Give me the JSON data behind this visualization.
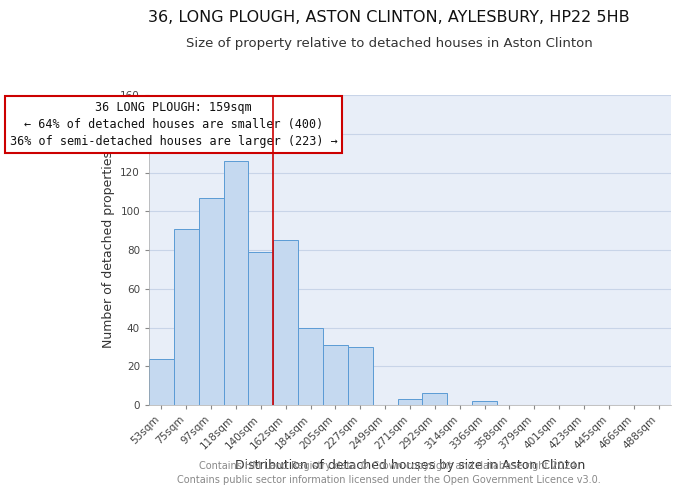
{
  "title": "36, LONG PLOUGH, ASTON CLINTON, AYLESBURY, HP22 5HB",
  "subtitle": "Size of property relative to detached houses in Aston Clinton",
  "xlabel": "Distribution of detached houses by size in Aston Clinton",
  "ylabel": "Number of detached properties",
  "footer_line1": "Contains HM Land Registry data © Crown copyright and database right 2024.",
  "footer_line2": "Contains public sector information licensed under the Open Government Licence v3.0.",
  "bar_labels": [
    "53sqm",
    "75sqm",
    "97sqm",
    "118sqm",
    "140sqm",
    "162sqm",
    "184sqm",
    "205sqm",
    "227sqm",
    "249sqm",
    "271sqm",
    "292sqm",
    "314sqm",
    "336sqm",
    "358sqm",
    "379sqm",
    "401sqm",
    "423sqm",
    "445sqm",
    "466sqm",
    "488sqm"
  ],
  "bar_values": [
    24,
    91,
    107,
    126,
    79,
    85,
    40,
    31,
    30,
    0,
    3,
    6,
    0,
    2,
    0,
    0,
    0,
    0,
    0,
    0,
    0
  ],
  "bar_color": "#c5d9f0",
  "bar_edge_color": "#5b9bd5",
  "grid_color": "#c8d4e8",
  "background_color": "#e8eef8",
  "annotation_box_text_line1": "36 LONG PLOUGH: 159sqm",
  "annotation_box_text_line2": "← 64% of detached houses are smaller (400)",
  "annotation_box_text_line3": "36% of semi-detached houses are larger (223) →",
  "annotation_box_edge_color": "#cc0000",
  "marker_line_color": "#cc0000",
  "ylim": [
    0,
    160
  ],
  "yticks": [
    0,
    20,
    40,
    60,
    80,
    100,
    120,
    140,
    160
  ],
  "title_fontsize": 11.5,
  "subtitle_fontsize": 9.5,
  "axis_label_fontsize": 9,
  "tick_fontsize": 7.5,
  "annotation_fontsize": 8.5,
  "footer_fontsize": 7
}
